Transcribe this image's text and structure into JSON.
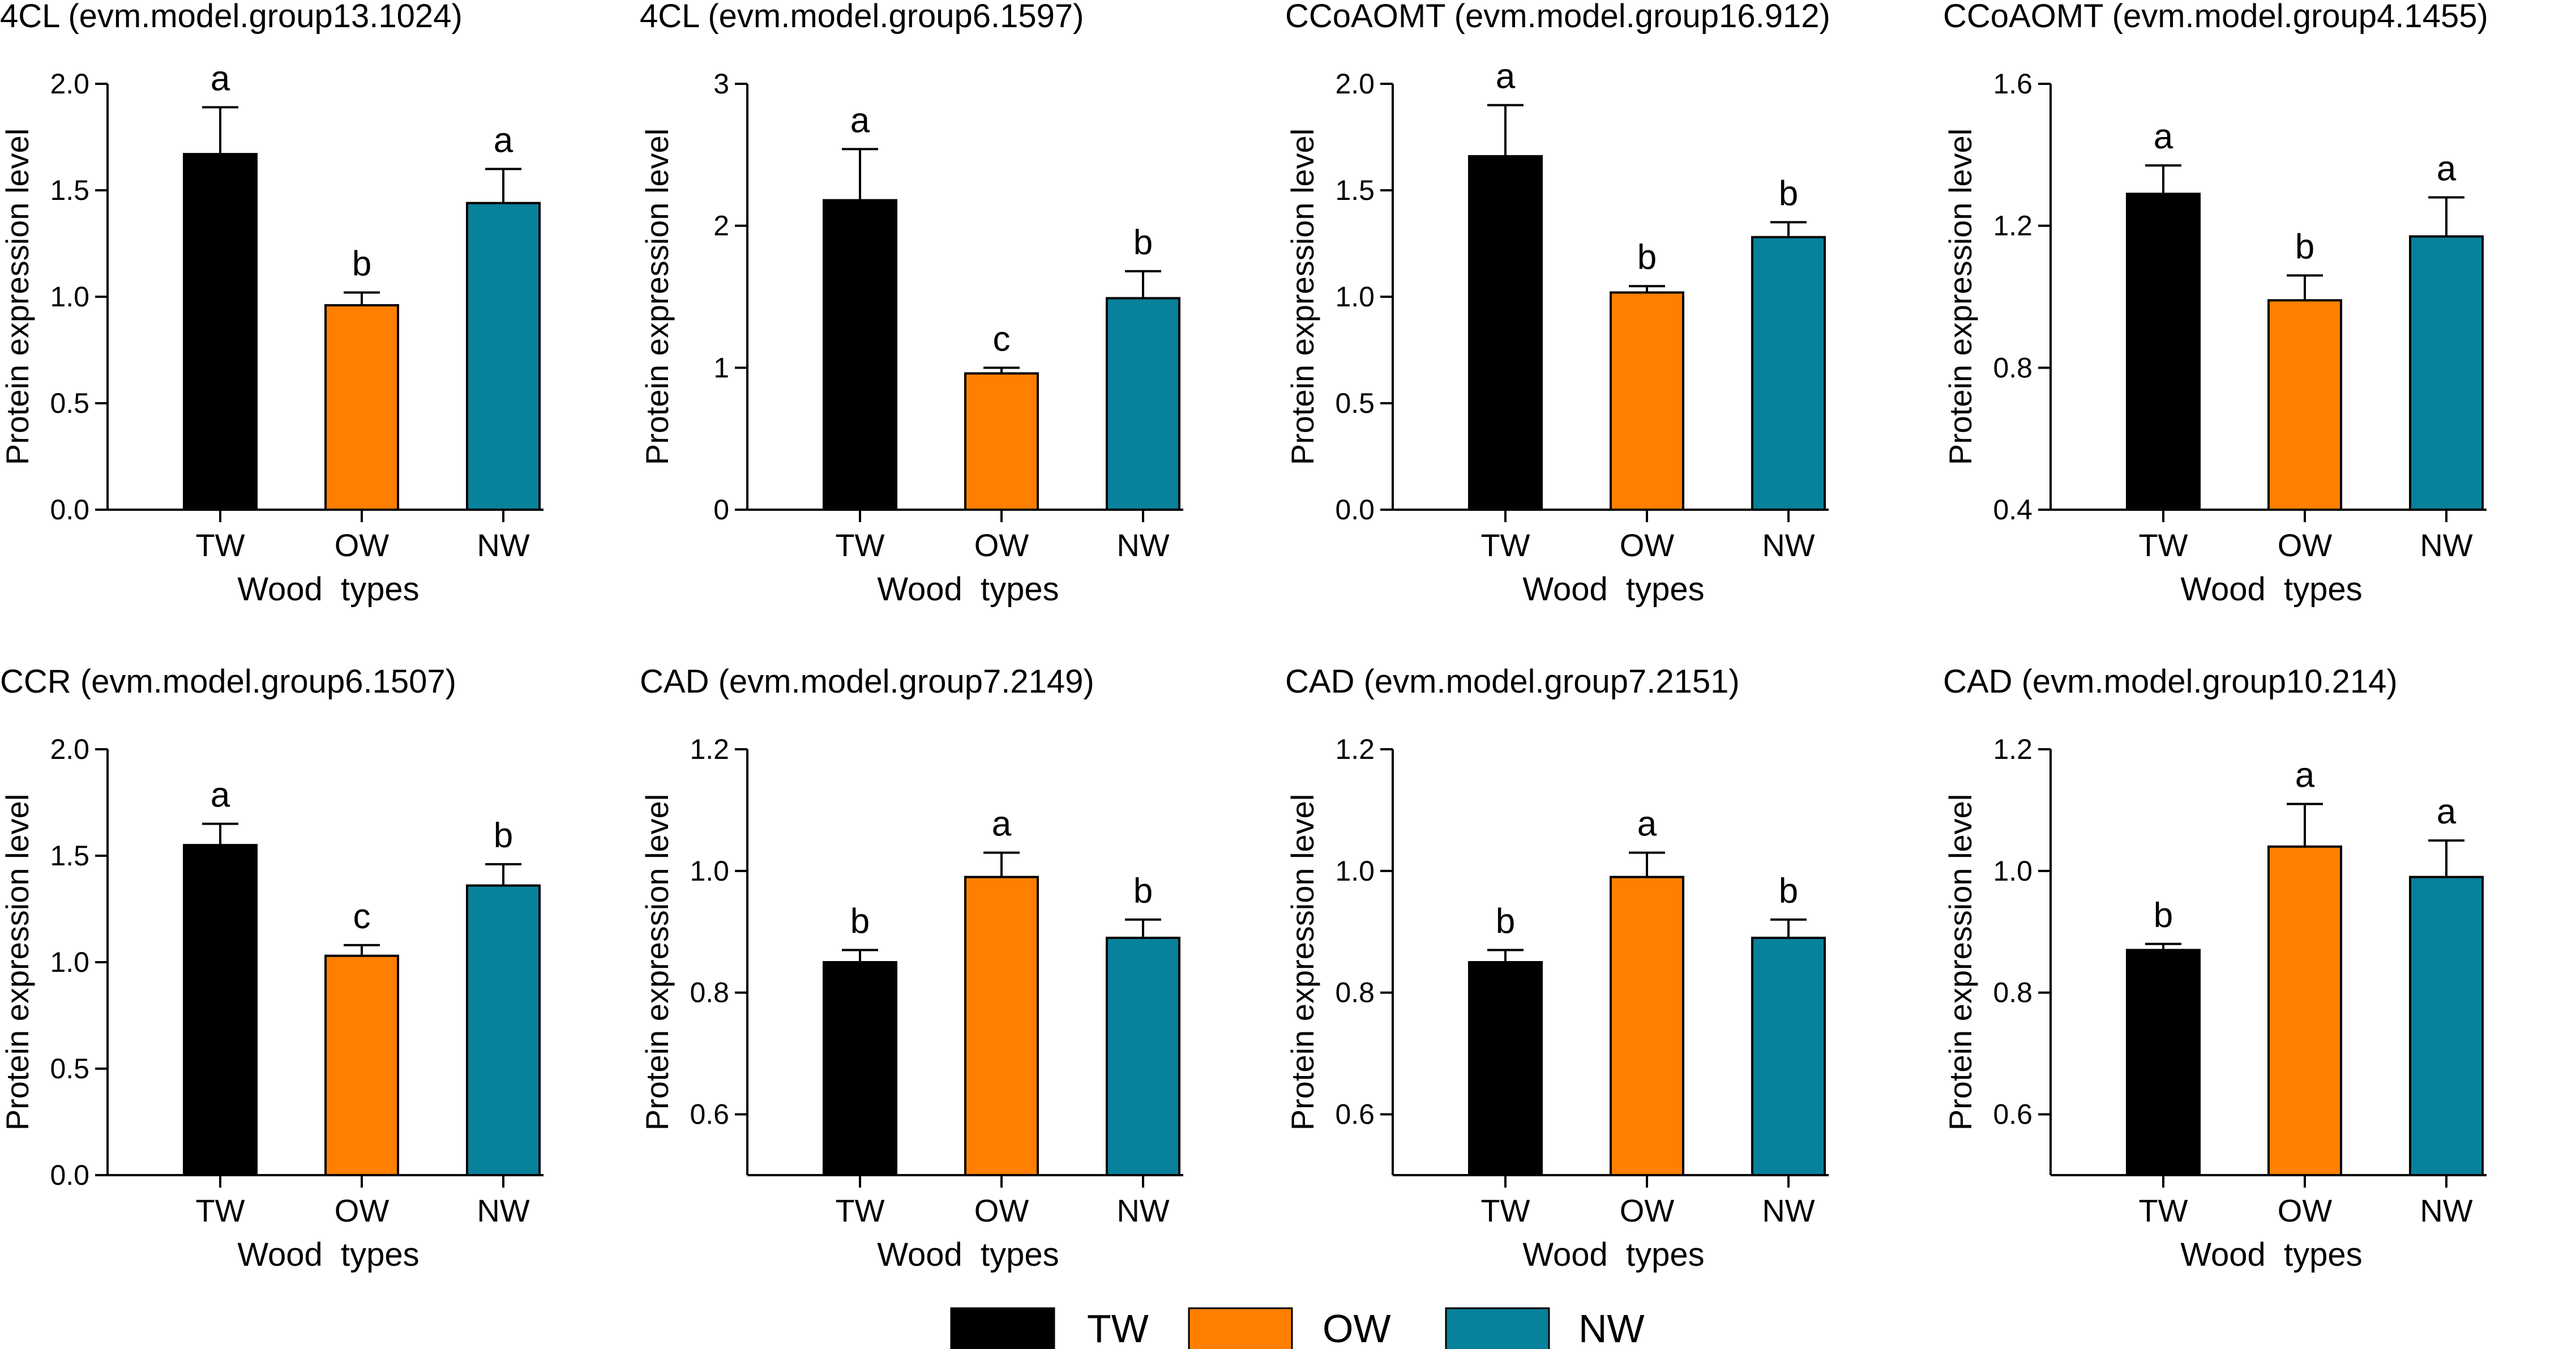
{
  "series_colors": {
    "TW": "#000000",
    "OW": "#ff7f00",
    "NW": "#08819b"
  },
  "legend": [
    "TW",
    "OW",
    "NW"
  ],
  "chart_data": [
    {
      "type": "bar",
      "title": "4CL (evm.model.group13.1024)",
      "categories": [
        "TW",
        "OW",
        "NW"
      ],
      "values": [
        1.67,
        0.96,
        1.44
      ],
      "errors": [
        0.22,
        0.06,
        0.16
      ],
      "significance": [
        "a",
        "b",
        "a"
      ],
      "xlabel": "Wood  types",
      "ylabel": "Protein expression level",
      "ylim": [
        0,
        2.0
      ],
      "yticks": [
        "0.0",
        "0.5",
        "1.0",
        "1.5",
        "2.0"
      ]
    },
    {
      "type": "bar",
      "title": "4CL (evm.model.group6.1597)",
      "categories": [
        "TW",
        "OW",
        "NW"
      ],
      "values": [
        2.18,
        0.96,
        1.49
      ],
      "errors": [
        0.36,
        0.04,
        0.19
      ],
      "significance": [
        "a",
        "c",
        "b"
      ],
      "xlabel": "Wood  types",
      "ylabel": "Protein expression level",
      "ylim": [
        0,
        3
      ],
      "yticks": [
        "0",
        "1",
        "2",
        "3"
      ]
    },
    {
      "type": "bar",
      "title": "CCoAOMT (evm.model.group16.912)",
      "categories": [
        "TW",
        "OW",
        "NW"
      ],
      "values": [
        1.66,
        1.02,
        1.28
      ],
      "errors": [
        0.24,
        0.03,
        0.07
      ],
      "significance": [
        "a",
        "b",
        "b"
      ],
      "xlabel": "Wood  types",
      "ylabel": "Protein expression level",
      "ylim": [
        0,
        2.0
      ],
      "yticks": [
        "0.0",
        "0.5",
        "1.0",
        "1.5",
        "2.0"
      ]
    },
    {
      "type": "bar",
      "title": "CCoAOMT (evm.model.group4.1455)",
      "categories": [
        "TW",
        "OW",
        "NW"
      ],
      "values": [
        1.29,
        0.99,
        1.17
      ],
      "errors": [
        0.08,
        0.07,
        0.11
      ],
      "significance": [
        "a",
        "b",
        "a"
      ],
      "xlabel": "Wood  types",
      "ylabel": "Protein expression level",
      "ylim": [
        0.4,
        1.6
      ],
      "yticks": [
        "0.4",
        "0.8",
        "1.2",
        "1.6"
      ]
    },
    {
      "type": "bar",
      "title": "CCR (evm.model.group6.1507)",
      "categories": [
        "TW",
        "OW",
        "NW"
      ],
      "values": [
        1.55,
        1.03,
        1.36
      ],
      "errors": [
        0.1,
        0.05,
        0.1
      ],
      "significance": [
        "a",
        "c",
        "b"
      ],
      "xlabel": "Wood  types",
      "ylabel": "Protein expression level",
      "ylim": [
        0,
        2.0
      ],
      "yticks": [
        "0.0",
        "0.5",
        "1.0",
        "1.5",
        "2.0"
      ]
    },
    {
      "type": "bar",
      "title": "CAD (evm.model.group7.2149)",
      "categories": [
        "TW",
        "OW",
        "NW"
      ],
      "values": [
        0.85,
        0.99,
        0.89
      ],
      "errors": [
        0.02,
        0.04,
        0.03
      ],
      "significance": [
        "b",
        "a",
        "b"
      ],
      "xlabel": "Wood  types",
      "ylabel": "Protein expression level",
      "ylim": [
        0.5,
        1.2
      ],
      "yticks": [
        "0.6",
        "0.8",
        "1.0",
        "1.2"
      ]
    },
    {
      "type": "bar",
      "title": "CAD (evm.model.group7.2151)",
      "categories": [
        "TW",
        "OW",
        "NW"
      ],
      "values": [
        0.85,
        0.99,
        0.89
      ],
      "errors": [
        0.02,
        0.04,
        0.03
      ],
      "significance": [
        "b",
        "a",
        "b"
      ],
      "xlabel": "Wood  types",
      "ylabel": "Protein expression level",
      "ylim": [
        0.5,
        1.2
      ],
      "yticks": [
        "0.6",
        "0.8",
        "1.0",
        "1.2"
      ]
    },
    {
      "type": "bar",
      "title": "CAD (evm.model.group10.214)",
      "categories": [
        "TW",
        "OW",
        "NW"
      ],
      "values": [
        0.87,
        1.04,
        0.99
      ],
      "errors": [
        0.01,
        0.07,
        0.06
      ],
      "significance": [
        "b",
        "a",
        "a"
      ],
      "xlabel": "Wood  types",
      "ylabel": "Protein expression level",
      "ylim": [
        0.5,
        1.2
      ],
      "yticks": [
        "0.6",
        "0.8",
        "1.0",
        "1.2"
      ]
    }
  ]
}
